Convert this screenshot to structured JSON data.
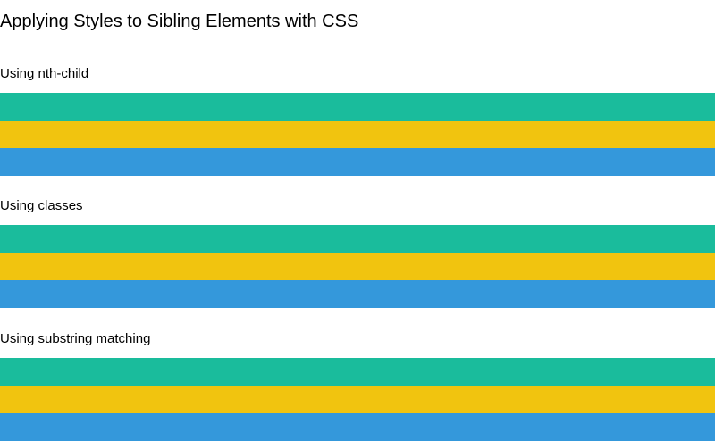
{
  "page": {
    "title": "Applying Styles to Sibling Elements with CSS"
  },
  "colors": {
    "first": "#1abc9c",
    "second": "#f1c40f",
    "third": "#3498db"
  },
  "sections": [
    {
      "heading": "Using nth-child",
      "bars": [
        "first",
        "second",
        "third"
      ]
    },
    {
      "heading": "Using classes",
      "bars": [
        "first",
        "second",
        "third"
      ]
    },
    {
      "heading": "Using substring matching",
      "bars": [
        "first",
        "second",
        "third"
      ]
    }
  ]
}
